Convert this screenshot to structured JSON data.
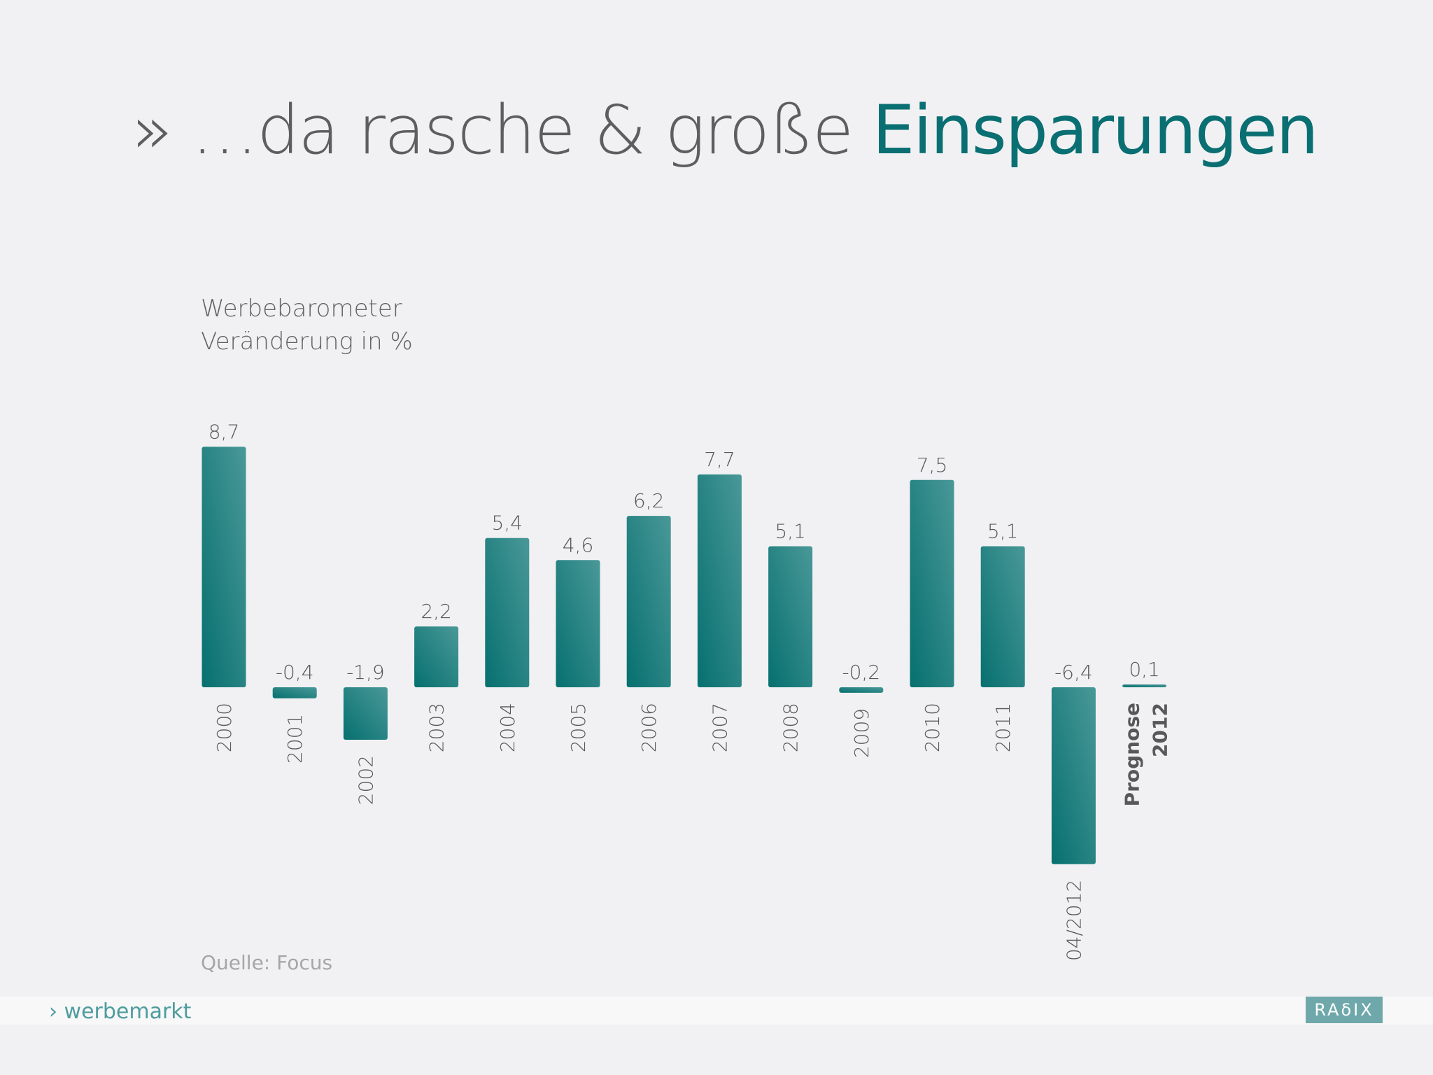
{
  "title": {
    "prefix": "» …da rasche & große ",
    "accent": "Einsparungen"
  },
  "footer": {
    "section": "› werbemarkt",
    "logo_text": "RAδIX"
  },
  "colors": {
    "title_gray": "#5e5e60",
    "accent_teal": "#0a6f72",
    "bar_dark": "#06706f",
    "bar_light": "#4a9898"
  },
  "chart_data": {
    "type": "bar",
    "title": "Werbebarometer",
    "subtitle": "Veränderung in %",
    "source": "Quelle: Focus",
    "categories": [
      "2000",
      "2001",
      "2002",
      "2003",
      "2004",
      "2005",
      "2006",
      "2007",
      "2008",
      "2009",
      "2010",
      "2011",
      "04/2012",
      "Prognose 2012"
    ],
    "values": [
      8.7,
      -0.4,
      -1.9,
      2.2,
      5.4,
      4.6,
      6.2,
      7.7,
      5.1,
      -0.2,
      7.5,
      5.1,
      -6.4,
      0.1
    ],
    "value_labels": [
      "8,7",
      "-0,4",
      "-1,9",
      "2,2",
      "5,4",
      "4,6",
      "6,2",
      "7,7",
      "5,1",
      "-0,2",
      "7,5",
      "5,1",
      "-6,4",
      "0,1"
    ],
    "category_lines": [
      [
        "2000"
      ],
      [
        "2001"
      ],
      [
        "2002"
      ],
      [
        "2003"
      ],
      [
        "2004"
      ],
      [
        "2005"
      ],
      [
        "2006"
      ],
      [
        "2007"
      ],
      [
        "2008"
      ],
      [
        "2009"
      ],
      [
        "2010"
      ],
      [
        "2011"
      ],
      [
        "04/2012"
      ],
      [
        "Prognose",
        "2012"
      ]
    ],
    "ylim": [
      -6.4,
      8.7
    ],
    "grid": false,
    "legend": "none"
  }
}
